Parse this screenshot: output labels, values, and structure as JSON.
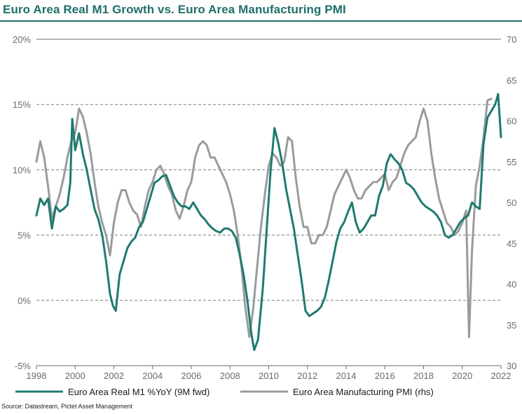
{
  "title": "Euro Area Real M1 Growth vs. Euro Area Manufacturing PMI",
  "source": "Source: Datastream, Pictet Asset Management",
  "colors": {
    "m1": "#1f7a6f",
    "pmi": "#9b9b9b",
    "title": "#1f6f6a"
  },
  "chart_data": {
    "type": "line",
    "title": "Euro Area Real M1 Growth vs. Euro Area Manufacturing PMI",
    "xlabel": "",
    "ylabel": "",
    "x_ticks": [
      "1998",
      "2000",
      "2002",
      "2004",
      "2006",
      "2008",
      "2010",
      "2012",
      "2014",
      "2016",
      "2018",
      "2020",
      "2022"
    ],
    "xlim": [
      1998,
      2022
    ],
    "y_left_ticks": [
      "20%",
      "15%",
      "10%",
      "5%",
      "0%",
      "-5%"
    ],
    "ylim_left": [
      -5,
      20
    ],
    "y_right_ticks": [
      "70",
      "65",
      "60",
      "55",
      "50",
      "45",
      "40",
      "35",
      "30"
    ],
    "ylim_right": [
      30,
      70
    ],
    "grid": "dashed horizontal at 15%, 10%, 5%, 0%; solid at top",
    "legend_position": "bottom",
    "series": [
      {
        "name": "Euro Area Real M1 %YoY (9M fwd)",
        "axis": "left",
        "x": [
          1998.0,
          1998.2,
          1998.4,
          1998.6,
          1998.8,
          1999.0,
          1999.2,
          1999.4,
          1999.6,
          1999.75,
          1999.85,
          2000.0,
          2000.2,
          2000.4,
          2000.6,
          2000.8,
          2001.0,
          2001.2,
          2001.4,
          2001.6,
          2001.8,
          2001.95,
          2002.1,
          2002.3,
          2002.5,
          2002.7,
          2002.9,
          2003.1,
          2003.3,
          2003.5,
          2003.7,
          2003.9,
          2004.1,
          2004.3,
          2004.5,
          2004.7,
          2004.9,
          2005.1,
          2005.3,
          2005.5,
          2005.7,
          2005.9,
          2006.1,
          2006.3,
          2006.5,
          2006.7,
          2006.9,
          2007.1,
          2007.3,
          2007.5,
          2007.7,
          2007.9,
          2008.1,
          2008.3,
          2008.5,
          2008.7,
          2008.9,
          2009.1,
          2009.25,
          2009.45,
          2009.7,
          2009.9,
          2010.1,
          2010.3,
          2010.5,
          2010.7,
          2010.9,
          2011.1,
          2011.3,
          2011.5,
          2011.7,
          2011.9,
          2012.1,
          2012.3,
          2012.5,
          2012.7,
          2012.9,
          2013.1,
          2013.3,
          2013.5,
          2013.7,
          2013.9,
          2014.1,
          2014.3,
          2014.5,
          2014.7,
          2014.9,
          2015.1,
          2015.3,
          2015.5,
          2015.7,
          2015.9,
          2016.1,
          2016.3,
          2016.5,
          2016.7,
          2016.9,
          2017.1,
          2017.3,
          2017.5,
          2017.7,
          2017.9,
          2018.1,
          2018.3,
          2018.5,
          2018.7,
          2018.9,
          2019.1,
          2019.3,
          2019.5,
          2019.7,
          2019.9,
          2020.1,
          2020.3,
          2020.5,
          2020.7,
          2020.9,
          2021.1,
          2021.3,
          2021.5,
          2021.7,
          2021.85,
          2022.0
        ],
        "values": [
          6.5,
          7.8,
          7.3,
          7.8,
          5.5,
          7.2,
          6.8,
          7.0,
          7.3,
          9.0,
          13.9,
          11.5,
          12.8,
          11.2,
          10.0,
          8.5,
          7.0,
          6.2,
          5.0,
          3.0,
          0.5,
          -0.4,
          -0.8,
          2.0,
          3.0,
          4.0,
          4.5,
          4.8,
          5.6,
          6.0,
          7.0,
          8.0,
          9.0,
          9.2,
          9.5,
          9.6,
          8.8,
          8.0,
          7.5,
          7.2,
          7.2,
          7.0,
          7.5,
          7.0,
          6.5,
          6.2,
          5.8,
          5.5,
          5.3,
          5.2,
          5.5,
          5.5,
          5.3,
          4.8,
          3.5,
          2.0,
          0.0,
          -2.5,
          -3.8,
          -3.0,
          1.0,
          5.5,
          10.0,
          13.2,
          12.0,
          10.5,
          8.5,
          7.0,
          5.5,
          3.5,
          1.5,
          -0.8,
          -1.2,
          -1.0,
          -0.8,
          -0.5,
          0.2,
          1.5,
          3.0,
          4.5,
          5.5,
          6.0,
          6.8,
          7.5,
          6.0,
          5.2,
          5.5,
          6.0,
          6.5,
          6.5,
          8.0,
          8.8,
          10.5,
          11.2,
          10.8,
          10.5,
          10.0,
          9.0,
          8.8,
          8.5,
          8.0,
          7.5,
          7.2,
          7.0,
          6.8,
          6.5,
          6.0,
          5.0,
          4.8,
          5.0,
          5.5,
          6.0,
          6.3,
          6.5,
          7.5,
          7.2,
          7.0,
          12.0,
          14.0,
          14.5,
          15.0,
          15.8,
          12.5
        ]
      },
      {
        "name": "Euro Area Manufacturing PMI (rhs)",
        "axis": "right",
        "x": [
          1998.0,
          1998.2,
          1998.4,
          1998.6,
          1998.8,
          1999.0,
          1999.2,
          1999.4,
          1999.6,
          1999.8,
          2000.0,
          2000.2,
          2000.4,
          2000.6,
          2000.8,
          2001.0,
          2001.2,
          2001.4,
          2001.6,
          2001.8,
          2002.0,
          2002.2,
          2002.4,
          2002.6,
          2002.8,
          2003.0,
          2003.2,
          2003.4,
          2003.6,
          2003.8,
          2004.0,
          2004.2,
          2004.4,
          2004.6,
          2004.8,
          2005.0,
          2005.2,
          2005.4,
          2005.6,
          2005.8,
          2006.0,
          2006.2,
          2006.4,
          2006.6,
          2006.8,
          2007.0,
          2007.2,
          2007.4,
          2007.6,
          2007.8,
          2008.0,
          2008.2,
          2008.4,
          2008.6,
          2008.8,
          2009.0,
          2009.2,
          2009.4,
          2009.6,
          2009.8,
          2010.0,
          2010.2,
          2010.4,
          2010.6,
          2010.8,
          2011.0,
          2011.2,
          2011.4,
          2011.6,
          2011.8,
          2012.0,
          2012.2,
          2012.4,
          2012.6,
          2012.8,
          2013.0,
          2013.2,
          2013.4,
          2013.6,
          2013.8,
          2014.0,
          2014.2,
          2014.4,
          2014.6,
          2014.8,
          2015.0,
          2015.2,
          2015.4,
          2015.6,
          2015.8,
          2016.0,
          2016.2,
          2016.4,
          2016.6,
          2016.8,
          2017.0,
          2017.2,
          2017.4,
          2017.6,
          2017.8,
          2018.0,
          2018.2,
          2018.4,
          2018.6,
          2018.8,
          2019.0,
          2019.2,
          2019.4,
          2019.6,
          2019.8,
          2020.0,
          2020.2,
          2020.35,
          2020.5,
          2020.7,
          2020.9,
          2021.1,
          2021.3,
          2021.5
        ],
        "values": [
          55.0,
          57.5,
          55.5,
          52.0,
          48.0,
          49.5,
          51.0,
          53.0,
          55.5,
          57.5,
          58.5,
          61.5,
          60.5,
          58.5,
          56.0,
          52.5,
          49.5,
          47.5,
          46.0,
          43.5,
          47.5,
          50.0,
          51.5,
          51.5,
          50.0,
          49.0,
          48.5,
          47.0,
          49.5,
          51.5,
          52.5,
          54.0,
          54.5,
          53.5,
          52.0,
          51.0,
          49.0,
          48.0,
          49.5,
          51.5,
          52.5,
          55.5,
          57.0,
          57.5,
          57.0,
          55.5,
          55.5,
          54.5,
          53.5,
          52.5,
          51.0,
          49.0,
          46.0,
          42.0,
          37.0,
          33.5,
          37.0,
          42.0,
          47.0,
          51.0,
          54.5,
          56.0,
          55.5,
          54.5,
          55.0,
          58.0,
          57.5,
          53.0,
          49.5,
          47.0,
          47.0,
          45.0,
          45.0,
          46.0,
          46.0,
          47.0,
          49.0,
          51.0,
          52.0,
          53.0,
          54.0,
          53.0,
          51.5,
          50.5,
          50.5,
          51.5,
          52.0,
          52.5,
          52.5,
          53.0,
          53.5,
          51.5,
          52.5,
          53.0,
          54.5,
          56.0,
          57.0,
          57.5,
          58.0,
          60.0,
          61.5,
          60.0,
          56.0,
          53.0,
          50.5,
          49.0,
          47.5,
          47.0,
          46.0,
          46.5,
          47.5,
          49.0,
          33.5,
          44.0,
          52.0,
          54.5,
          58.0,
          62.5,
          62.7
        ]
      }
    ]
  }
}
